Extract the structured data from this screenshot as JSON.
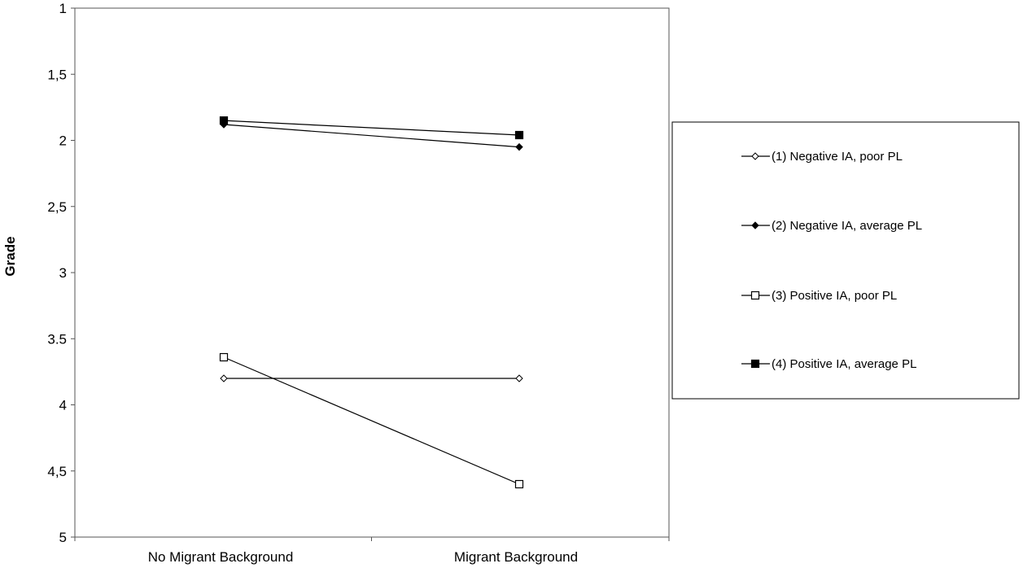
{
  "chart_data": {
    "type": "line",
    "title": "",
    "xlabel": "",
    "ylabel": "Grade",
    "ylim": [
      1,
      5
    ],
    "y_inverted": true,
    "yticks": [
      1,
      1.5,
      2,
      2.5,
      3,
      3.5,
      4,
      4.5,
      5
    ],
    "ytick_labels": [
      "1",
      "1,5",
      "2",
      "2,5",
      "3",
      "3.5",
      "4",
      "4,5",
      "5"
    ],
    "categories": [
      "No Migrant Background",
      "Migrant Background"
    ],
    "grid": false,
    "legend_position": "right",
    "series": [
      {
        "name": "(1) Negative IA, poor PL",
        "marker": "diamond-open",
        "values": [
          3.8,
          3.8
        ]
      },
      {
        "name": "(2) Negative IA, average PL",
        "marker": "diamond-filled",
        "values": [
          1.88,
          2.05
        ]
      },
      {
        "name": "(3) Positive IA, poor PL",
        "marker": "square-open",
        "values": [
          3.64,
          4.6
        ]
      },
      {
        "name": "(4) Positive IA, average PL",
        "marker": "square-filled",
        "values": [
          1.85,
          1.96
        ]
      }
    ]
  }
}
